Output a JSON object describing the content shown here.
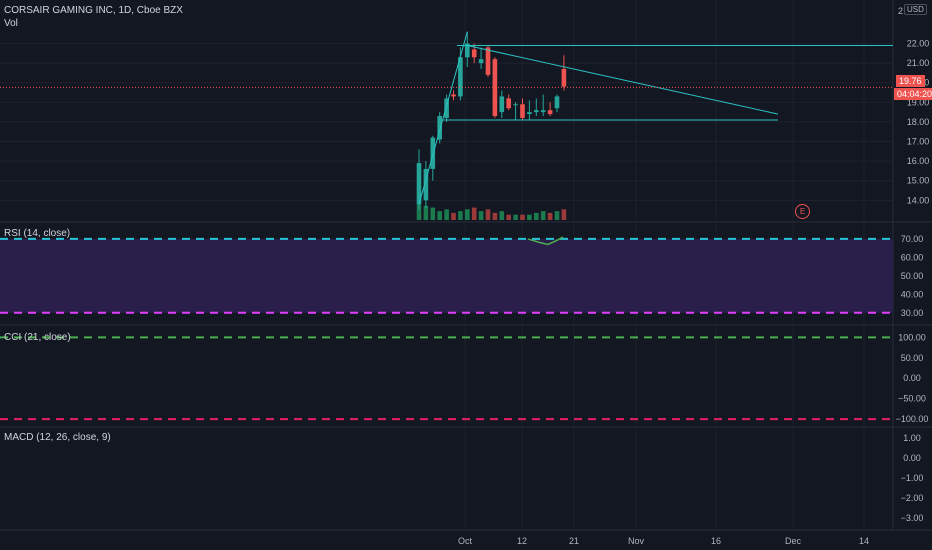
{
  "symbol_title": "CORSAIR GAMING INC, 1D, Cboe BZX",
  "volume_label": "Vol",
  "currency": "USD",
  "axis_top_partial": "2",
  "last_price": "19.76",
  "countdown": "04:04:20",
  "earnings_marker": "E",
  "colors": {
    "background": "#131722",
    "up": "#26a69a",
    "down": "#ef5350",
    "trendline": "#2bc4c4",
    "rsi_fill": "#2a1f4a",
    "rsi_band_upper": "#26c6da",
    "rsi_band_lower": "#e040fb",
    "cci_upper": "#4caf50",
    "cci_lower": "#e91e63"
  },
  "chart_data": [
    {
      "type": "candlestick",
      "title": "CORSAIR GAMING INC, 1D, Cboe BZX",
      "ylim": [
        13.2,
        23.2
      ],
      "y_ticks": [
        "22.00",
        "21.00",
        "20.00",
        "19.00",
        "18.00",
        "17.00",
        "16.00",
        "15.00",
        "14.00"
      ],
      "x_ticks": [
        "Oct",
        "12",
        "21",
        "Nov",
        "16",
        "Dec",
        "14"
      ],
      "candles": [
        {
          "o": 13.8,
          "h": 16.6,
          "l": 13.5,
          "c": 15.9
        },
        {
          "o": 14.0,
          "h": 16.0,
          "l": 13.6,
          "c": 15.6
        },
        {
          "o": 15.6,
          "h": 17.3,
          "l": 15.0,
          "c": 17.2
        },
        {
          "o": 17.1,
          "h": 18.5,
          "l": 16.9,
          "c": 18.3
        },
        {
          "o": 18.2,
          "h": 19.4,
          "l": 18.0,
          "c": 19.2
        },
        {
          "o": 19.4,
          "h": 19.6,
          "l": 19.1,
          "c": 19.3
        },
        {
          "o": 19.3,
          "h": 21.8,
          "l": 19.1,
          "c": 21.3
        },
        {
          "o": 21.3,
          "h": 22.6,
          "l": 20.8,
          "c": 22.0
        },
        {
          "o": 21.7,
          "h": 22.0,
          "l": 21.0,
          "c": 21.3
        },
        {
          "o": 21.0,
          "h": 21.8,
          "l": 20.7,
          "c": 21.2
        },
        {
          "o": 21.8,
          "h": 21.9,
          "l": 20.3,
          "c": 20.4
        },
        {
          "o": 21.2,
          "h": 21.3,
          "l": 18.2,
          "c": 18.3
        },
        {
          "o": 18.5,
          "h": 19.6,
          "l": 18.2,
          "c": 19.3
        },
        {
          "o": 19.2,
          "h": 19.4,
          "l": 18.6,
          "c": 18.7
        },
        {
          "o": 18.9,
          "h": 19.0,
          "l": 18.1,
          "c": 18.9
        },
        {
          "o": 18.9,
          "h": 19.2,
          "l": 18.1,
          "c": 18.2
        },
        {
          "o": 18.4,
          "h": 19.1,
          "l": 18.1,
          "c": 18.5
        },
        {
          "o": 18.5,
          "h": 19.2,
          "l": 18.3,
          "c": 18.6
        },
        {
          "o": 18.5,
          "h": 19.4,
          "l": 18.3,
          "c": 18.6
        },
        {
          "o": 18.6,
          "h": 19.0,
          "l": 18.3,
          "c": 18.4
        },
        {
          "o": 18.7,
          "h": 19.4,
          "l": 18.5,
          "c": 19.3
        },
        {
          "o": 20.7,
          "h": 21.4,
          "l": 19.6,
          "c": 19.8
        }
      ],
      "volumes": [
        9,
        8,
        7,
        5,
        6,
        4,
        5,
        6,
        7,
        5,
        6,
        4,
        5,
        3,
        3,
        3,
        3,
        4,
        5,
        4,
        5,
        6
      ]
    },
    {
      "type": "line",
      "title": "RSI (14, close)",
      "ylim": [
        25,
        77
      ],
      "y_ticks": [
        "70.00",
        "60.00",
        "50.00",
        "40.00",
        "30.00"
      ],
      "bands": [
        70,
        30
      ]
    },
    {
      "type": "line",
      "title": "CCI (21, close)",
      "ylim": [
        -112,
        118
      ],
      "y_ticks": [
        "100.00",
        "50.00",
        "0.00",
        "−50.00",
        "−100.00"
      ],
      "bands": [
        100,
        -100
      ]
    },
    {
      "type": "line",
      "title": "MACD (12, 26, close, 9)",
      "ylim": [
        -3.4,
        1.4
      ],
      "y_ticks": [
        "1.00",
        "0.00",
        "−1.00",
        "−2.00",
        "−3.00"
      ]
    }
  ]
}
